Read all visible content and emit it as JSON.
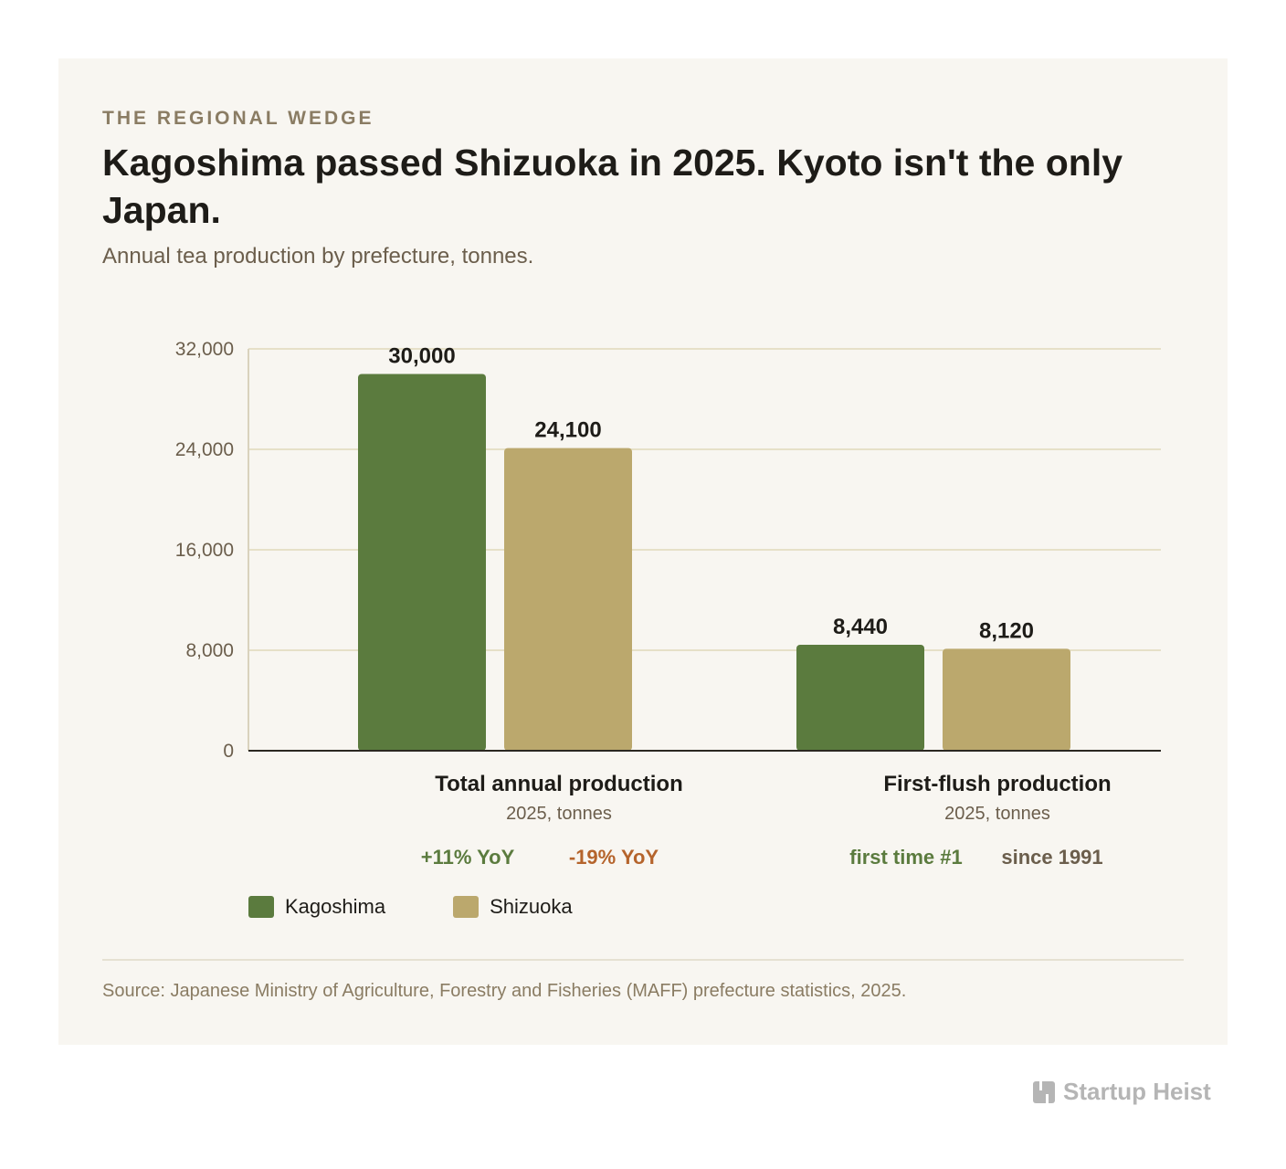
{
  "header": {
    "eyebrow": "THE REGIONAL WEDGE",
    "title": "Kagoshima passed Shizuoka in 2025. Kyoto isn't the only Japan.",
    "subtitle": "Annual tea production by prefecture, tonnes."
  },
  "chart_data": {
    "type": "bar",
    "categories": [
      "Total annual production",
      "First-flush production"
    ],
    "category_subtitles": [
      "2025, tonnes",
      "2025, tonnes"
    ],
    "series": [
      {
        "name": "Kagoshima",
        "color": "#5b7b3e",
        "values": [
          30000,
          8440
        ],
        "value_labels": [
          "30,000",
          "8,440"
        ]
      },
      {
        "name": "Shizuoka",
        "color": "#bba86d",
        "values": [
          24100,
          8120
        ],
        "value_labels": [
          "24,100",
          "8,120"
        ]
      }
    ],
    "ylim": [
      0,
      32000
    ],
    "yticks": [
      0,
      8000,
      16000,
      24000,
      32000
    ],
    "ytick_labels": [
      "0",
      "8,000",
      "16,000",
      "24,000",
      "32,000"
    ],
    "grid": true,
    "annotations": [
      [
        {
          "text": "+11% YoY",
          "color": "#5b7b3e"
        },
        {
          "text": "-19% YoY",
          "color": "#b5642c"
        }
      ],
      [
        {
          "text": "first time #1",
          "color": "#5b7b3e"
        },
        {
          "text": "since 1991",
          "color": "#6b5e4c"
        }
      ]
    ],
    "legend_position": "bottom-left"
  },
  "legend": {
    "items": [
      {
        "label": "Kagoshima",
        "color": "#5b7b3e"
      },
      {
        "label": "Shizuoka",
        "color": "#bba86d"
      }
    ]
  },
  "footer": {
    "source": "Source: Japanese Ministry of Agriculture, Forestry and Fisheries (MAFF) prefecture statistics, 2025."
  },
  "brand": {
    "name": "Startup Heist",
    "icon": "startup-heist-logo-icon"
  }
}
